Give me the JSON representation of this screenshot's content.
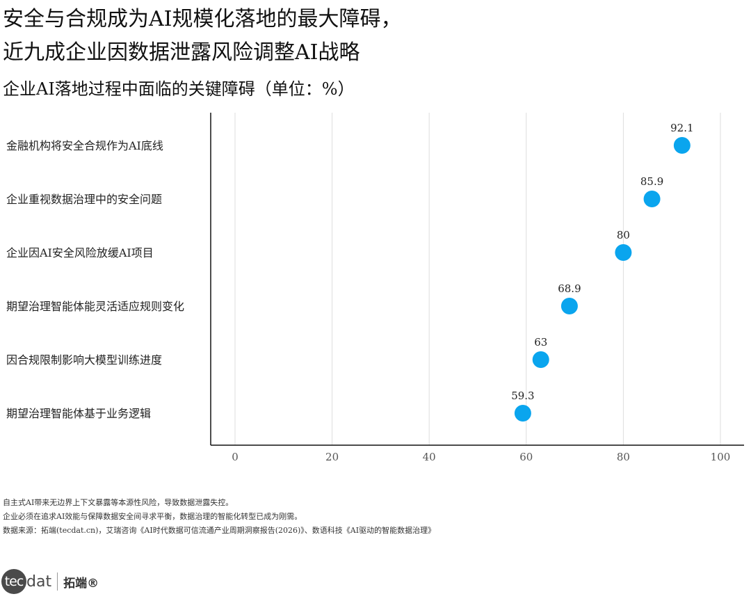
{
  "title_line1": "安全与合规成为AI规模化落地的最大障碍，",
  "title_line2": "近九成企业因数据泄露风险调整AI战略",
  "subtitle": "企业AI落地过程中面临的关键障碍（单位：%）",
  "colors": {
    "dot": "#0aa5ee",
    "grid": "#dddddd",
    "axis": "#111111"
  },
  "chart_data": {
    "type": "scatter",
    "categories": [
      "金融机构将安全合规作为AI底线",
      "企业重视数据治理中的安全问题",
      "企业因AI安全风险放缓AI项目",
      "期望治理智能体能灵活适应规则变化",
      "因合规限制影响大模型训练进度",
      "期望治理智能体基于业务逻辑"
    ],
    "values": [
      92.1,
      85.9,
      80,
      68.9,
      63,
      59.3
    ],
    "value_labels": [
      "92.1",
      "85.9",
      "80",
      "68.9",
      "63",
      "59.3"
    ],
    "xlim": [
      0,
      100
    ],
    "xticks": [
      0,
      20,
      40,
      60,
      80,
      100
    ],
    "grid": "vertical"
  },
  "notes": {
    "line1": "自主式AI带来无边界上下文暴露等本源性风险，导致数据泄露失控。",
    "line2": "企业必须在追求AI效能与保障数据安全间寻求平衡，数据治理的智能化转型已成为刚需。",
    "line3": "数据来源：拓端(tecdat.cn)，艾瑞咨询《AI时代数据可信流通产业周期洞察报告(2026)》、数语科技《AI驱动的智能数据治理》"
  },
  "logo": {
    "circle_text": "tec",
    "rest_text": "dat",
    "cn_text": "拓端®"
  }
}
